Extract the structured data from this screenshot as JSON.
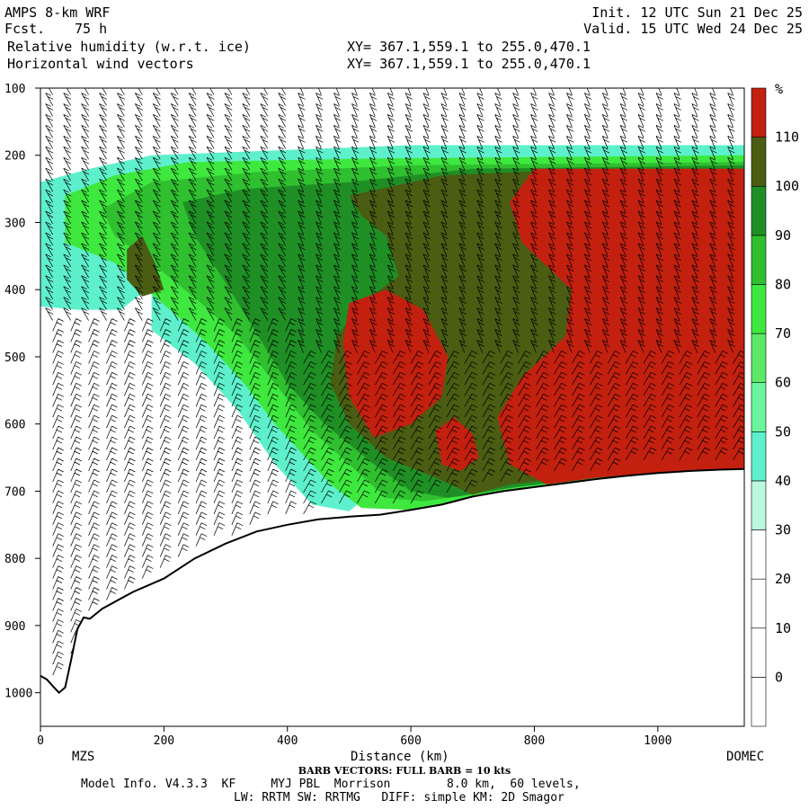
{
  "header": {
    "model": "AMPS 8-km WRF",
    "fcst_label": "Fcst.",
    "fcst_value": "75 h",
    "field1": "Relative humidity (w.r.t. ice)",
    "field2": "Horizontal wind vectors",
    "xy1": "XY= 367.1,559.1 to 255.0,470.1",
    "xy2": "XY= 367.1,559.1 to 255.0,470.1",
    "init": "Init. 12 UTC Sun 21 Dec 25",
    "valid": "Valid. 15 UTC Wed 24 Dec 25"
  },
  "footer": {
    "barb_note": "BARB VECTORS: FULL BARB = 10 kts",
    "model_info": "Model Info. V4.3.3  KF     MYJ PBL  Morrison        8.0 km,  60 levels,",
    "model_info2": "LW: RRTM SW: RRTMG   DIFF: simple KM: 2D Smagor"
  },
  "chart_data": {
    "type": "heatmap",
    "title": "Relative humidity (w.r.t. ice)",
    "xlabel": "Distance (km)",
    "ylabel": "",
    "x_range": [
      0,
      1140
    ],
    "y_range": [
      1050,
      100
    ],
    "x_ticks": [
      0,
      200,
      400,
      600,
      800,
      1000
    ],
    "y_ticks": [
      100,
      200,
      300,
      400,
      500,
      600,
      700,
      800,
      900,
      1000
    ],
    "x_end_labels": {
      "left": "MZS",
      "right": "DOMEC"
    },
    "colorbar": {
      "unit": "%",
      "levels": [
        0,
        10,
        20,
        30,
        40,
        50,
        60,
        70,
        80,
        90,
        100,
        110
      ],
      "tick_labels": [
        "0",
        "10",
        "20",
        "30",
        "40",
        "50",
        "60",
        "70",
        "80",
        "90",
        "100",
        "110"
      ],
      "colors": [
        "#ffffff",
        "#ffffff",
        "#ffffff",
        "#ffffff",
        "#bcf7e0",
        "#5ef0cc",
        "#6af59c",
        "#5ee868",
        "#3ee83e",
        "#2fbf2f",
        "#1f8f25",
        "#4a5d12",
        "#c42010"
      ]
    },
    "terrain": [
      [
        0,
        975
      ],
      [
        10,
        980
      ],
      [
        20,
        990
      ],
      [
        30,
        1000
      ],
      [
        40,
        992
      ],
      [
        50,
        950
      ],
      [
        60,
        905
      ],
      [
        70,
        888
      ],
      [
        80,
        890
      ],
      [
        100,
        875
      ],
      [
        120,
        865
      ],
      [
        150,
        850
      ],
      [
        200,
        830
      ],
      [
        250,
        800
      ],
      [
        300,
        778
      ],
      [
        350,
        760
      ],
      [
        400,
        750
      ],
      [
        450,
        742
      ],
      [
        500,
        738
      ],
      [
        550,
        735
      ],
      [
        600,
        728
      ],
      [
        650,
        720
      ],
      [
        700,
        708
      ],
      [
        750,
        700
      ],
      [
        800,
        694
      ],
      [
        850,
        688
      ],
      [
        900,
        682
      ],
      [
        950,
        677
      ],
      [
        1000,
        673
      ],
      [
        1050,
        670
      ],
      [
        1100,
        668
      ],
      [
        1140,
        667
      ]
    ],
    "rh_regions": [
      {
        "level": 40,
        "points": [
          [
            0,
            240
          ],
          [
            80,
            220
          ],
          [
            180,
            200
          ],
          [
            600,
            185
          ],
          [
            1140,
            185
          ],
          [
            1140,
            200
          ],
          [
            900,
            205
          ],
          [
            600,
            215
          ],
          [
            300,
            330
          ],
          [
            200,
            380
          ],
          [
            130,
            430
          ],
          [
            60,
            430
          ],
          [
            0,
            425
          ]
        ]
      },
      {
        "level": 40,
        "points": [
          [
            180,
            400
          ],
          [
            260,
            470
          ],
          [
            360,
            560
          ],
          [
            420,
            620
          ],
          [
            480,
            660
          ],
          [
            540,
            700
          ],
          [
            500,
            730
          ],
          [
            440,
            720
          ],
          [
            380,
            660
          ],
          [
            320,
            580
          ],
          [
            250,
            510
          ],
          [
            180,
            460
          ]
        ]
      },
      {
        "level": 70,
        "points": [
          [
            40,
            260
          ],
          [
            120,
            230
          ],
          [
            240,
            210
          ],
          [
            520,
            205
          ],
          [
            1140,
            200
          ],
          [
            1140,
            680
          ],
          [
            1000,
            680
          ],
          [
            850,
            695
          ],
          [
            720,
            712
          ],
          [
            600,
            728
          ],
          [
            520,
            725
          ],
          [
            470,
            690
          ],
          [
            430,
            650
          ],
          [
            380,
            600
          ],
          [
            330,
            540
          ],
          [
            270,
            480
          ],
          [
            210,
            430
          ],
          [
            120,
            360
          ],
          [
            40,
            330
          ]
        ]
      },
      {
        "level": 80,
        "points": [
          [
            100,
            280
          ],
          [
            180,
            240
          ],
          [
            350,
            225
          ],
          [
            600,
            215
          ],
          [
            1140,
            210
          ],
          [
            1140,
            675
          ],
          [
            900,
            685
          ],
          [
            800,
            690
          ],
          [
            700,
            705
          ],
          [
            620,
            715
          ],
          [
            560,
            710
          ],
          [
            500,
            660
          ],
          [
            440,
            610
          ],
          [
            380,
            540
          ],
          [
            320,
            470
          ],
          [
            260,
            420
          ],
          [
            180,
            360
          ],
          [
            120,
            320
          ]
        ]
      },
      {
        "level": 90,
        "points": [
          [
            230,
            270
          ],
          [
            330,
            250
          ],
          [
            500,
            240
          ],
          [
            700,
            220
          ],
          [
            1140,
            215
          ],
          [
            1140,
            670
          ],
          [
            900,
            680
          ],
          [
            760,
            695
          ],
          [
            660,
            710
          ],
          [
            600,
            700
          ],
          [
            540,
            660
          ],
          [
            460,
            600
          ],
          [
            400,
            540
          ],
          [
            340,
            450
          ],
          [
            300,
            390
          ],
          [
            250,
            320
          ]
        ]
      },
      {
        "level": 100,
        "points": [
          [
            500,
            260
          ],
          [
            650,
            230
          ],
          [
            900,
            220
          ],
          [
            1140,
            220
          ],
          [
            1140,
            670
          ],
          [
            980,
            672
          ],
          [
            860,
            680
          ],
          [
            760,
            690
          ],
          [
            700,
            705
          ],
          [
            640,
            680
          ],
          [
            560,
            650
          ],
          [
            500,
            600
          ],
          [
            470,
            540
          ],
          [
            480,
            470
          ],
          [
            520,
            420
          ],
          [
            580,
            380
          ],
          [
            560,
            320
          ],
          [
            520,
            290
          ]
        ]
      },
      {
        "level": 100,
        "points": [
          [
            140,
            340
          ],
          [
            165,
            320
          ],
          [
            185,
            360
          ],
          [
            200,
            400
          ],
          [
            165,
            410
          ],
          [
            140,
            385
          ]
        ]
      },
      {
        "level": 110,
        "points": [
          [
            800,
            220
          ],
          [
            1140,
            220
          ],
          [
            1140,
            670
          ],
          [
            1000,
            672
          ],
          [
            900,
            680
          ],
          [
            820,
            690
          ],
          [
            760,
            660
          ],
          [
            740,
            590
          ],
          [
            780,
            530
          ],
          [
            850,
            470
          ],
          [
            860,
            400
          ],
          [
            780,
            330
          ],
          [
            760,
            270
          ]
        ]
      },
      {
        "level": 110,
        "points": [
          [
            500,
            420
          ],
          [
            560,
            400
          ],
          [
            620,
            430
          ],
          [
            660,
            500
          ],
          [
            650,
            560
          ],
          [
            600,
            600
          ],
          [
            540,
            620
          ],
          [
            500,
            560
          ],
          [
            490,
            480
          ]
        ]
      },
      {
        "level": 111,
        "points": [
          [
            640,
            610
          ],
          [
            670,
            590
          ],
          [
            700,
            615
          ],
          [
            710,
            650
          ],
          [
            680,
            670
          ],
          [
            650,
            660
          ]
        ]
      }
    ]
  }
}
